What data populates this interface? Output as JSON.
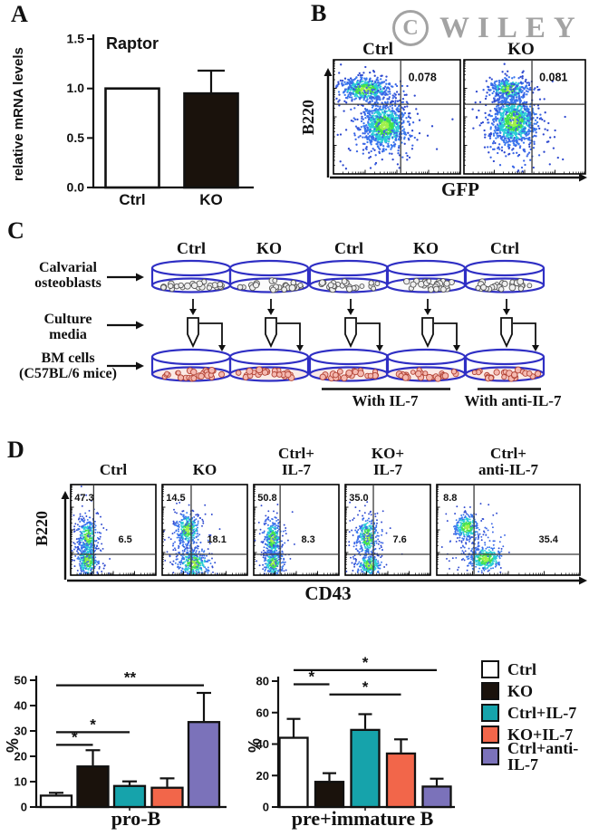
{
  "watermark": {
    "copyright_letter": "C",
    "text": "WILEY"
  },
  "panel_a": {
    "label": "A"
  },
  "panel_b": {
    "label": "B"
  },
  "panel_c": {
    "label": "C",
    "rows": [
      {
        "line1": "Calvarial",
        "line2": "osteoblasts"
      },
      {
        "line1": "Culture",
        "line2": "media"
      },
      {
        "line1": "BM cells",
        "line2": "(C57BL/6 mice)"
      }
    ],
    "dish_labels": [
      "Ctrl",
      "KO",
      "Ctrl",
      "KO",
      "Ctrl"
    ],
    "groups": [
      {
        "text": "With IL-7"
      },
      {
        "text": "With anti-IL-7"
      }
    ]
  },
  "panel_d": {
    "label": "D"
  },
  "colors": {
    "dish_stroke": "#2f2fc4",
    "osteo_dot_fill": "#efefef",
    "osteo_dot_stroke": "#555555",
    "bm_dot_fill": "#f5b9b0",
    "bm_dot_stroke": "#b24436",
    "flow_palette": [
      "#a0f04a",
      "#44e14e",
      "#2bcdd6",
      "#3a78ee",
      "#2e49cf"
    ],
    "watermark": "#a3a3a3"
  },
  "legend": {
    "items": [
      {
        "label": "Ctrl",
        "color": "#ffffff"
      },
      {
        "label": "KO",
        "color": "#1a120c"
      },
      {
        "label": "Ctrl+IL-7",
        "color": "#16a3ab"
      },
      {
        "label": "KO+IL-7",
        "color": "#f2664a"
      },
      {
        "label": "Ctrl+anti-IL-7",
        "color": "#7b72ba"
      }
    ]
  },
  "chart_data": [
    {
      "id": "raptor",
      "type": "bar",
      "title": "Raptor",
      "ylabel": "relative mRNA levels",
      "categories": [
        "Ctrl",
        "KO"
      ],
      "values": [
        1.0,
        0.95
      ],
      "errors": [
        0,
        0.23
      ],
      "ylim": [
        0,
        1.5
      ],
      "yticks": [
        "0.0",
        "0.5",
        "1.0",
        "1.5"
      ],
      "bar_colors": [
        "#ffffff",
        "#1a120c"
      ]
    },
    {
      "id": "flow_b",
      "type": "flow-scatter",
      "xlabel": "GFP",
      "ylabel": "B220",
      "plots": [
        {
          "title": "Ctrl",
          "quadrant_value": "0.078",
          "gate_x": 0.53,
          "gate_y": 0.39,
          "clusters": [
            {
              "cx": 0.25,
              "cy": 0.26,
              "sx": 0.1,
              "sy": 0.05,
              "n": 360
            },
            {
              "cx": 0.4,
              "cy": 0.58,
              "sx": 0.085,
              "sy": 0.1,
              "n": 680
            },
            {
              "cx": 0.37,
              "cy": 0.6,
              "sx": 0.17,
              "sy": 0.2,
              "n": 190,
              "sparse": true
            },
            {
              "cx": 0.26,
              "cy": 0.26,
              "sx": 0.18,
              "sy": 0.07,
              "n": 110,
              "sparse": true
            }
          ]
        },
        {
          "title": "KO",
          "quadrant_value": "0.081",
          "gate_x": 0.56,
          "gate_y": 0.39,
          "clusters": [
            {
              "cx": 0.37,
              "cy": 0.26,
              "sx": 0.075,
              "sy": 0.05,
              "n": 240
            },
            {
              "cx": 0.41,
              "cy": 0.54,
              "sx": 0.09,
              "sy": 0.105,
              "n": 750
            },
            {
              "cx": 0.42,
              "cy": 0.62,
              "sx": 0.16,
              "sy": 0.21,
              "n": 200,
              "sparse": true
            },
            {
              "cx": 0.37,
              "cy": 0.27,
              "sx": 0.14,
              "sy": 0.07,
              "n": 80,
              "sparse": true
            }
          ]
        }
      ]
    },
    {
      "id": "flow_d",
      "type": "flow-scatter",
      "xlabel": "CD43",
      "ylabel": "B220",
      "plots": [
        {
          "title_lines": [
            "Ctrl"
          ],
          "upper_left_value": "47.3",
          "right_value": "6.5",
          "gate_x": 0.27,
          "gate_y": 0.77,
          "right_label_x": 0.64,
          "clusters": [
            {
              "cx": 0.2,
              "cy": 0.58,
              "sx": 0.055,
              "sy": 0.1,
              "n": 300
            },
            {
              "cx": 0.2,
              "cy": 0.84,
              "sx": 0.06,
              "sy": 0.09,
              "n": 280
            },
            {
              "cx": 0.21,
              "cy": 0.7,
              "sx": 0.1,
              "sy": 0.24,
              "n": 140,
              "sparse": true
            }
          ]
        },
        {
          "title_lines": [
            "KO"
          ],
          "upper_left_value": "14.5",
          "right_value": "18.1",
          "gate_x": 0.34,
          "gate_y": 0.77,
          "right_label_x": 0.64,
          "clusters": [
            {
              "cx": 0.3,
              "cy": 0.5,
              "sx": 0.07,
              "sy": 0.09,
              "n": 300
            },
            {
              "cx": 0.37,
              "cy": 0.87,
              "sx": 0.095,
              "sy": 0.08,
              "n": 330
            },
            {
              "cx": 0.33,
              "cy": 0.68,
              "sx": 0.13,
              "sy": 0.22,
              "n": 170,
              "sparse": true
            }
          ]
        },
        {
          "title_lines": [
            "Ctrl+",
            "IL-7"
          ],
          "upper_left_value": "50.8",
          "right_value": "8.3",
          "gate_x": 0.31,
          "gate_y": 0.77,
          "right_label_x": 0.64,
          "clusters": [
            {
              "cx": 0.22,
              "cy": 0.6,
              "sx": 0.05,
              "sy": 0.1,
              "n": 300
            },
            {
              "cx": 0.23,
              "cy": 0.87,
              "sx": 0.055,
              "sy": 0.07,
              "n": 220
            },
            {
              "cx": 0.23,
              "cy": 0.7,
              "sx": 0.1,
              "sy": 0.22,
              "n": 130,
              "sparse": true
            }
          ]
        },
        {
          "title_lines": [
            "KO+",
            "IL-7"
          ],
          "upper_left_value": "35.0",
          "right_value": "7.6",
          "gate_x": 0.33,
          "gate_y": 0.77,
          "right_label_x": 0.64,
          "clusters": [
            {
              "cx": 0.26,
              "cy": 0.58,
              "sx": 0.06,
              "sy": 0.11,
              "n": 280
            },
            {
              "cx": 0.28,
              "cy": 0.89,
              "sx": 0.07,
              "sy": 0.06,
              "n": 220
            },
            {
              "cx": 0.27,
              "cy": 0.7,
              "sx": 0.115,
              "sy": 0.22,
              "n": 150,
              "sparse": true
            }
          ]
        },
        {
          "title_lines": [
            "Ctrl+",
            "anti-IL-7"
          ],
          "upper_left_value": "8.8",
          "right_value": "35.4",
          "gate_x": 0.26,
          "gate_y": 0.77,
          "right_label_x": 0.78,
          "clusters": [
            {
              "cx": 0.21,
              "cy": 0.47,
              "sx": 0.045,
              "sy": 0.07,
              "n": 280
            },
            {
              "cx": 0.34,
              "cy": 0.82,
              "sx": 0.06,
              "sy": 0.07,
              "n": 330
            },
            {
              "cx": 0.28,
              "cy": 0.62,
              "sx": 0.12,
              "sy": 0.18,
              "n": 110,
              "sparse": true
            }
          ]
        }
      ]
    },
    {
      "id": "pro_b",
      "type": "bar",
      "xlabel": "pro-B",
      "ylabel": "%",
      "categories": [
        "Ctrl",
        "KO",
        "Ctrl+IL-7",
        "KO+IL-7",
        "Ctrl+anti-IL-7"
      ],
      "values": [
        4.5,
        16,
        8.3,
        7.6,
        33.5
      ],
      "errors": [
        1.1,
        6.4,
        1.8,
        3.7,
        11.5
      ],
      "ylim": [
        0,
        50
      ],
      "yticks": [
        0,
        10,
        20,
        30,
        40,
        50
      ],
      "bar_colors": [
        "#ffffff",
        "#1a120c",
        "#16a3ab",
        "#f2664a",
        "#7b72ba"
      ],
      "significance": [
        {
          "a": 0,
          "b": 1,
          "y": 24.5,
          "label": "*"
        },
        {
          "a": 0,
          "b": 2,
          "y": 29.5,
          "label": "*"
        },
        {
          "a": 0,
          "b": 4,
          "y": 48,
          "label": "**"
        }
      ]
    },
    {
      "id": "pre_b",
      "type": "bar",
      "xlabel": "pre+immature B",
      "ylabel": "%",
      "categories": [
        "Ctrl",
        "KO",
        "Ctrl+IL-7",
        "KO+IL-7",
        "Ctrl+anti-IL-7"
      ],
      "values": [
        44,
        16,
        49,
        34,
        13
      ],
      "errors": [
        12,
        5.5,
        10,
        9,
        5
      ],
      "ylim": [
        0,
        80
      ],
      "yticks": [
        0,
        20,
        40,
        60,
        80
      ],
      "bar_colors": [
        "#ffffff",
        "#1a120c",
        "#16a3ab",
        "#f2664a",
        "#7b72ba"
      ],
      "significance": [
        {
          "a": 0,
          "b": 1,
          "y": 78,
          "label": "*"
        },
        {
          "a": 1,
          "b": 3,
          "y": 71.5,
          "label": "*"
        },
        {
          "a": 0,
          "b": 4,
          "y": 87,
          "label": "*"
        }
      ]
    }
  ]
}
